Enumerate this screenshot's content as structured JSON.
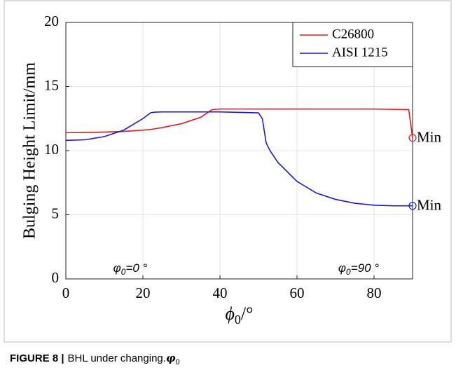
{
  "chart_data": {
    "type": "line",
    "ylabel": "Bulging Height Limit/mm",
    "xlabel": {
      "symbol": "ϕ",
      "subscript": "0",
      "unit": "/°"
    },
    "x": [
      0,
      5,
      10,
      15,
      20,
      22,
      23,
      25,
      30,
      35,
      38,
      40,
      50,
      51,
      52,
      53,
      55,
      60,
      65,
      70,
      75,
      80,
      85,
      89,
      90
    ],
    "series": [
      {
        "name": "C26800",
        "color": "#e31a1c",
        "values": [
          11.4,
          11.42,
          11.45,
          11.5,
          11.6,
          11.65,
          11.7,
          11.8,
          12.1,
          12.6,
          13.2,
          13.25,
          13.25,
          13.25,
          13.25,
          13.25,
          13.25,
          13.25,
          13.25,
          13.25,
          13.25,
          13.25,
          13.22,
          13.2,
          11
        ]
      },
      {
        "name": "AISI 1215",
        "color": "#1a1ad6",
        "values": [
          10.8,
          10.85,
          11.1,
          11.6,
          12.5,
          12.95,
          13,
          13.02,
          13.02,
          13.02,
          13.02,
          13.02,
          12.95,
          12.5,
          10.6,
          10,
          9.1,
          7.6,
          6.7,
          6.2,
          5.9,
          5.75,
          5.7,
          5.7,
          5.7
        ]
      }
    ],
    "annotations": [
      {
        "text": "Min",
        "x": 90,
        "y": 11,
        "series": 0
      },
      {
        "text": "Min",
        "x": 90,
        "y": 5.7,
        "series": 1
      }
    ],
    "insets": [
      {
        "symbol": "φ",
        "subscript": "0",
        "text": "=0 °"
      },
      {
        "symbol": "φ",
        "subscript": "0",
        "text": "=90 °"
      }
    ],
    "xlim": [
      0,
      90
    ],
    "xticks": [
      0,
      20,
      40,
      60,
      80
    ],
    "ylim": [
      0,
      20
    ],
    "yticks": [
      0,
      5,
      10,
      15,
      20
    ],
    "grid": true,
    "legend": "upper right"
  },
  "caption": {
    "label": "FIGURE 8 |",
    "text": "BHL under changing.",
    "symbol": "φ",
    "subscript": "0"
  }
}
